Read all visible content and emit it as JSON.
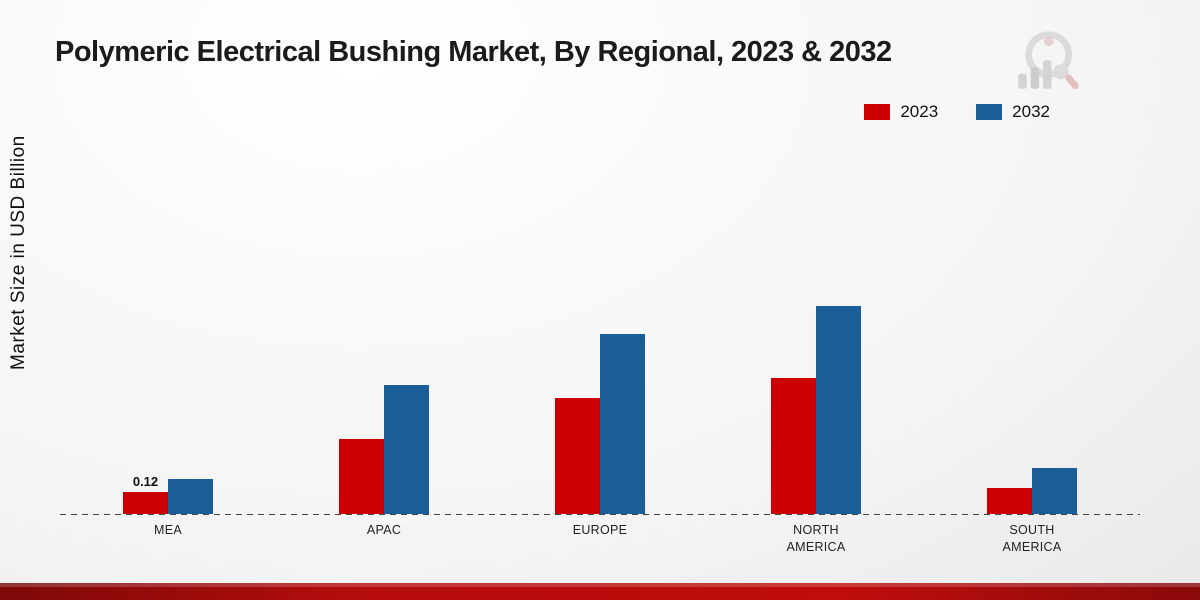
{
  "title": "Polymeric Electrical Bushing Market, By Regional, 2023 & 2032",
  "ylabel": "Market Size in USD Billion",
  "legend": [
    {
      "label": "2023",
      "color": "#cc0001"
    },
    {
      "label": "2032",
      "color": "#1b5e97"
    }
  ],
  "chart_data": {
    "type": "bar",
    "title": "Polymeric Electrical Bushing Market, By Regional, 2023 & 2032",
    "xlabel": "",
    "ylabel": "Market Size in USD Billion",
    "categories": [
      "MEA",
      "APAC",
      "EUROPE",
      "NORTH AMERICA",
      "SOUTH AMERICA"
    ],
    "series": [
      {
        "name": "2023",
        "color": "#cc0001",
        "values": [
          0.12,
          0.41,
          0.63,
          0.74,
          0.14
        ]
      },
      {
        "name": "2032",
        "color": "#1b5e97",
        "values": [
          0.19,
          0.7,
          0.98,
          1.13,
          0.25
        ]
      }
    ],
    "annotations": [
      {
        "category": "MEA",
        "series": "2023",
        "text": "0.12"
      }
    ],
    "ylim": [
      0,
      1.2
    ],
    "grid": false,
    "legend_position": "top-right"
  }
}
